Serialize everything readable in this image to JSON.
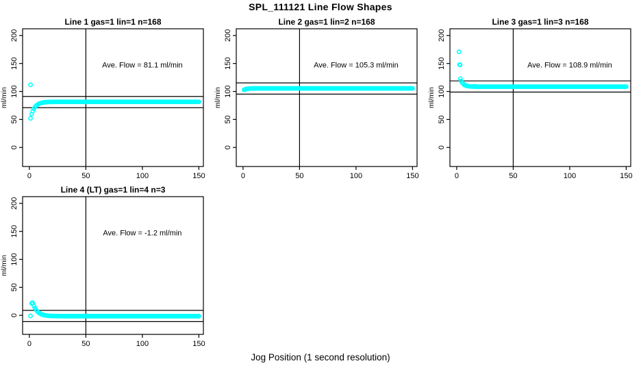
{
  "figure": {
    "title": "SPL_111121  Line Flow Shapes",
    "xlabel": "Jog Position (1 second resolution)",
    "background": "#ffffff"
  },
  "colors": {
    "points": "#00ffff",
    "lines": "#000000",
    "text": "#000000"
  },
  "chart_data": [
    {
      "type": "scatter",
      "title": "Line 1 gas=1 lin=1 n=168",
      "ylabel": "ml/min",
      "ave_flow": 81.1,
      "annotation": "Ave. Flow =  81.1  ml/min",
      "annotation_at": {
        "x": 100,
        "y": 148
      },
      "xlim": [
        -6,
        154
      ],
      "ylim": [
        -34,
        212
      ],
      "xticks": [
        0,
        50,
        100,
        150
      ],
      "yticks": [
        0,
        50,
        100,
        150,
        200
      ],
      "vline_x": 50,
      "hlines_y": [
        91.1,
        71.1
      ],
      "series_spec": {
        "x_start": 1,
        "x_end": 150,
        "step": 1,
        "asymptote": 81.5,
        "amplitude": -29.5,
        "tau": 3.5,
        "x0": 1
      },
      "extra_points": [
        [
          1,
          112
        ]
      ],
      "grid_position": {
        "row": 0,
        "col": 0
      }
    },
    {
      "type": "scatter",
      "title": "Line 2 gas=1 lin=2 n=168",
      "ylabel": "ml/min",
      "ave_flow": 105.3,
      "annotation": "Ave. Flow =  105.3  ml/min",
      "annotation_at": {
        "x": 100,
        "y": 148
      },
      "xlim": [
        -6,
        154
      ],
      "ylim": [
        -34,
        212
      ],
      "xticks": [
        0,
        50,
        100,
        150
      ],
      "yticks": [
        0,
        50,
        100,
        150,
        200
      ],
      "vline_x": 50,
      "hlines_y": [
        115.3,
        95.3
      ],
      "series_spec": {
        "x_start": 1,
        "x_end": 150,
        "step": 1,
        "asymptote": 105.5,
        "amplitude": -2.5,
        "tau": 2,
        "x0": 1
      },
      "extra_points": [
        [
          1,
          103
        ],
        [
          2,
          103.5
        ]
      ],
      "grid_position": {
        "row": 0,
        "col": 1
      }
    },
    {
      "type": "scatter",
      "title": "Line 3 gas=1 lin=3 n=168",
      "ylabel": "ml/min",
      "ave_flow": 108.9,
      "annotation": "Ave. Flow =  108.9  ml/min",
      "annotation_at": {
        "x": 100,
        "y": 148
      },
      "xlim": [
        -6,
        154
      ],
      "ylim": [
        -34,
        212
      ],
      "xticks": [
        0,
        50,
        100,
        150
      ],
      "yticks": [
        0,
        50,
        100,
        150,
        200
      ],
      "vline_x": 50,
      "hlines_y": [
        118.9,
        98.9
      ],
      "series_spec": {
        "x_start": 4,
        "x_end": 150,
        "step": 1,
        "asymptote": 108.6,
        "amplitude": 10,
        "tau": 2.5,
        "x0": 4
      },
      "extra_points": [
        [
          2,
          171
        ],
        [
          2.5,
          148
        ],
        [
          3,
          147.5
        ],
        [
          3.2,
          123
        ]
      ],
      "grid_position": {
        "row": 0,
        "col": 2
      }
    },
    {
      "type": "scatter",
      "title": "Line 4 (LT) gas=1 lin=4 n=3",
      "ylabel": "ml/min",
      "ave_flow": -1.2,
      "annotation": "Ave. Flow =  -1.2  ml/min",
      "annotation_at": {
        "x": 100,
        "y": 148
      },
      "xlim": [
        -6,
        154
      ],
      "ylim": [
        -34,
        212
      ],
      "xticks": [
        0,
        50,
        100,
        150
      ],
      "yticks": [
        0,
        50,
        100,
        150,
        200
      ],
      "vline_x": 50,
      "hlines_y": [
        8.8,
        -11.2
      ],
      "series_spec": {
        "x_start": 3,
        "x_end": 150,
        "step": 1,
        "asymptote": -1.5,
        "amplitude": 23.5,
        "tau": 4,
        "x0": 3
      },
      "extra_points": [
        [
          1,
          -1
        ],
        [
          2,
          21.5
        ],
        [
          2.6,
          22.5
        ]
      ],
      "grid_position": {
        "row": 1,
        "col": 0
      }
    }
  ]
}
